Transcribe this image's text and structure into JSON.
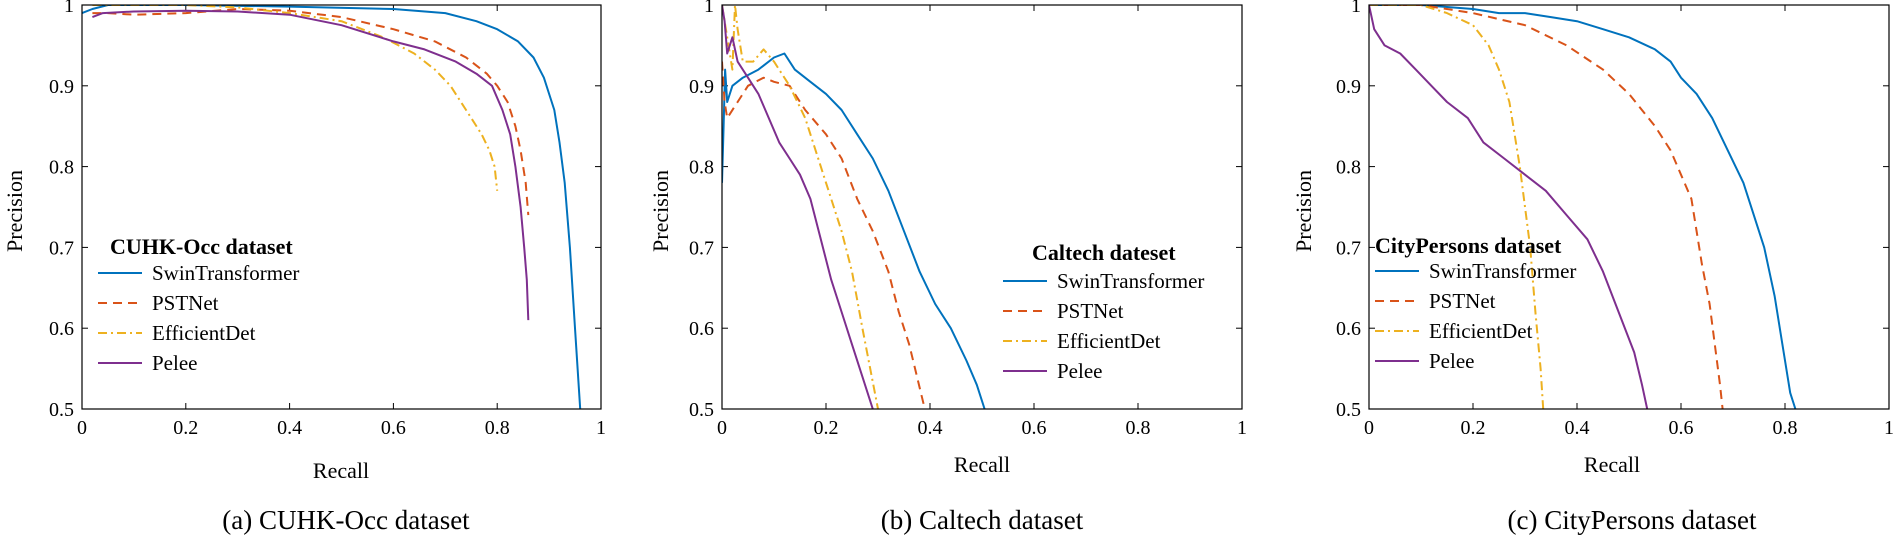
{
  "series_styles": {
    "SwinTransformer": {
      "color": "#0072BD",
      "dash": ""
    },
    "PSTNet": {
      "color": "#D95319",
      "dash": "9,6"
    },
    "EfficientDet": {
      "color": "#EDB120",
      "dash": "9,4,2,4"
    },
    "Pelee": {
      "color": "#7E2F8E",
      "dash": ""
    }
  },
  "chart_data": [
    {
      "type": "line",
      "caption": "(a) CUHK-Occ dataset",
      "legend_title": "CUHK-Occ dataset",
      "xlabel": "Recall",
      "ylabel": "Precision",
      "xlim": [
        0,
        1
      ],
      "ylim": [
        0.5,
        1
      ],
      "xticks": [
        0,
        0.2,
        0.4,
        0.6,
        0.8,
        1
      ],
      "xtick_labels": [
        "0",
        "0.2",
        "0.4",
        "0.6",
        "0.8",
        "1"
      ],
      "yticks": [
        0.5,
        0.6,
        0.7,
        0.8,
        0.9,
        1
      ],
      "ytick_labels": [
        "0.5",
        "0.6",
        "0.7",
        "0.8",
        "0.9",
        "1"
      ],
      "series": [
        {
          "name": "SwinTransformer",
          "points": [
            [
              0.0,
              0.99
            ],
            [
              0.02,
              0.995
            ],
            [
              0.05,
              1.0
            ],
            [
              0.2,
              1.0
            ],
            [
              0.4,
              0.998
            ],
            [
              0.6,
              0.995
            ],
            [
              0.7,
              0.99
            ],
            [
              0.76,
              0.98
            ],
            [
              0.8,
              0.97
            ],
            [
              0.84,
              0.955
            ],
            [
              0.87,
              0.935
            ],
            [
              0.89,
              0.91
            ],
            [
              0.91,
              0.87
            ],
            [
              0.92,
              0.83
            ],
            [
              0.93,
              0.78
            ],
            [
              0.94,
              0.7
            ],
            [
              0.95,
              0.6
            ],
            [
              0.955,
              0.55
            ],
            [
              0.96,
              0.5
            ]
          ]
        },
        {
          "name": "PSTNet",
          "points": [
            [
              0.02,
              0.99
            ],
            [
              0.05,
              0.99
            ],
            [
              0.1,
              0.988
            ],
            [
              0.2,
              0.99
            ],
            [
              0.3,
              0.995
            ],
            [
              0.4,
              0.993
            ],
            [
              0.5,
              0.985
            ],
            [
              0.6,
              0.97
            ],
            [
              0.68,
              0.955
            ],
            [
              0.74,
              0.935
            ],
            [
              0.78,
              0.915
            ],
            [
              0.8,
              0.9
            ],
            [
              0.82,
              0.88
            ],
            [
              0.835,
              0.85
            ],
            [
              0.845,
              0.82
            ],
            [
              0.855,
              0.78
            ],
            [
              0.86,
              0.74
            ]
          ]
        },
        {
          "name": "EfficientDet",
          "points": [
            [
              0.02,
              1.0
            ],
            [
              0.1,
              1.0
            ],
            [
              0.2,
              1.0
            ],
            [
              0.3,
              0.997
            ],
            [
              0.4,
              0.99
            ],
            [
              0.5,
              0.98
            ],
            [
              0.58,
              0.96
            ],
            [
              0.64,
              0.94
            ],
            [
              0.68,
              0.92
            ],
            [
              0.71,
              0.9
            ],
            [
              0.73,
              0.88
            ],
            [
              0.75,
              0.86
            ],
            [
              0.77,
              0.84
            ],
            [
              0.785,
              0.82
            ],
            [
              0.795,
              0.8
            ],
            [
              0.8,
              0.77
            ]
          ]
        },
        {
          "name": "Pelee",
          "points": [
            [
              0.02,
              0.985
            ],
            [
              0.04,
              0.99
            ],
            [
              0.1,
              0.992
            ],
            [
              0.2,
              0.993
            ],
            [
              0.3,
              0.992
            ],
            [
              0.4,
              0.988
            ],
            [
              0.5,
              0.975
            ],
            [
              0.6,
              0.955
            ],
            [
              0.66,
              0.945
            ],
            [
              0.72,
              0.93
            ],
            [
              0.76,
              0.915
            ],
            [
              0.79,
              0.9
            ],
            [
              0.81,
              0.87
            ],
            [
              0.825,
              0.84
            ],
            [
              0.835,
              0.8
            ],
            [
              0.845,
              0.75
            ],
            [
              0.852,
              0.7
            ],
            [
              0.857,
              0.66
            ],
            [
              0.86,
              0.61
            ]
          ]
        }
      ]
    },
    {
      "type": "line",
      "caption": "(b) Caltech dataset",
      "legend_title": "Caltech dateset",
      "xlabel": "Recall",
      "ylabel": "Precision",
      "xlim": [
        0,
        1
      ],
      "ylim": [
        0.5,
        1
      ],
      "xticks": [
        0,
        0.2,
        0.4,
        0.6,
        0.8,
        1
      ],
      "xtick_labels": [
        "0",
        "0.2",
        "0.4",
        "0.6",
        "0.8",
        "1"
      ],
      "yticks": [
        0.5,
        0.6,
        0.7,
        0.8,
        0.9,
        1
      ],
      "ytick_labels": [
        "0.5",
        "0.6",
        "0.7",
        "0.8",
        "0.9",
        "1"
      ],
      "series": [
        {
          "name": "SwinTransformer",
          "points": [
            [
              0.0,
              0.78
            ],
            [
              0.003,
              0.85
            ],
            [
              0.006,
              0.92
            ],
            [
              0.01,
              0.88
            ],
            [
              0.02,
              0.9
            ],
            [
              0.04,
              0.91
            ],
            [
              0.07,
              0.92
            ],
            [
              0.1,
              0.935
            ],
            [
              0.12,
              0.94
            ],
            [
              0.14,
              0.92
            ],
            [
              0.17,
              0.905
            ],
            [
              0.2,
              0.89
            ],
            [
              0.23,
              0.87
            ],
            [
              0.26,
              0.84
            ],
            [
              0.29,
              0.81
            ],
            [
              0.32,
              0.77
            ],
            [
              0.35,
              0.72
            ],
            [
              0.38,
              0.67
            ],
            [
              0.41,
              0.63
            ],
            [
              0.44,
              0.6
            ],
            [
              0.47,
              0.56
            ],
            [
              0.49,
              0.53
            ],
            [
              0.505,
              0.5
            ]
          ]
        },
        {
          "name": "PSTNet",
          "points": [
            [
              0.0,
              0.93
            ],
            [
              0.005,
              0.88
            ],
            [
              0.01,
              0.86
            ],
            [
              0.03,
              0.88
            ],
            [
              0.05,
              0.9
            ],
            [
              0.08,
              0.91
            ],
            [
              0.1,
              0.905
            ],
            [
              0.13,
              0.9
            ],
            [
              0.16,
              0.87
            ],
            [
              0.2,
              0.84
            ],
            [
              0.23,
              0.81
            ],
            [
              0.26,
              0.76
            ],
            [
              0.29,
              0.72
            ],
            [
              0.32,
              0.67
            ],
            [
              0.34,
              0.62
            ],
            [
              0.36,
              0.58
            ],
            [
              0.375,
              0.54
            ],
            [
              0.39,
              0.5
            ]
          ]
        },
        {
          "name": "EfficientDet",
          "points": [
            [
              0.0,
              1.0
            ],
            [
              0.01,
              0.96
            ],
            [
              0.02,
              0.92
            ],
            [
              0.025,
              1.0
            ],
            [
              0.03,
              0.97
            ],
            [
              0.04,
              0.93
            ],
            [
              0.06,
              0.93
            ],
            [
              0.08,
              0.945
            ],
            [
              0.1,
              0.93
            ],
            [
              0.13,
              0.9
            ],
            [
              0.16,
              0.86
            ],
            [
              0.19,
              0.8
            ],
            [
              0.21,
              0.76
            ],
            [
              0.23,
              0.72
            ],
            [
              0.25,
              0.67
            ],
            [
              0.27,
              0.6
            ],
            [
              0.285,
              0.55
            ],
            [
              0.3,
              0.5
            ]
          ]
        },
        {
          "name": "Pelee",
          "points": [
            [
              0.0,
              1.0
            ],
            [
              0.005,
              0.98
            ],
            [
              0.01,
              0.94
            ],
            [
              0.02,
              0.96
            ],
            [
              0.03,
              0.93
            ],
            [
              0.05,
              0.91
            ],
            [
              0.07,
              0.89
            ],
            [
              0.09,
              0.86
            ],
            [
              0.11,
              0.83
            ],
            [
              0.13,
              0.81
            ],
            [
              0.15,
              0.79
            ],
            [
              0.17,
              0.76
            ],
            [
              0.19,
              0.71
            ],
            [
              0.21,
              0.66
            ],
            [
              0.23,
              0.62
            ],
            [
              0.25,
              0.58
            ],
            [
              0.27,
              0.54
            ],
            [
              0.29,
              0.5
            ]
          ]
        }
      ]
    },
    {
      "type": "line",
      "caption": "(c) CityPersons dataset",
      "legend_title": "CityPersons dataset",
      "xlabel": "Recall",
      "ylabel": "Precision",
      "xlim": [
        0,
        1
      ],
      "ylim": [
        0.5,
        1
      ],
      "xticks": [
        0,
        0.2,
        0.4,
        0.6,
        0.8,
        1
      ],
      "xtick_labels": [
        "0",
        "0.2",
        "0.4",
        "0.6",
        "0.8",
        "1"
      ],
      "yticks": [
        0.5,
        0.6,
        0.7,
        0.8,
        0.9,
        1
      ],
      "ytick_labels": [
        "0.5",
        "0.6",
        "0.7",
        "0.8",
        "0.9",
        "1"
      ],
      "series": [
        {
          "name": "SwinTransformer",
          "points": [
            [
              0.0,
              1.0
            ],
            [
              0.1,
              1.0
            ],
            [
              0.2,
              0.995
            ],
            [
              0.25,
              0.99
            ],
            [
              0.3,
              0.99
            ],
            [
              0.35,
              0.985
            ],
            [
              0.4,
              0.98
            ],
            [
              0.45,
              0.97
            ],
            [
              0.5,
              0.96
            ],
            [
              0.55,
              0.945
            ],
            [
              0.58,
              0.93
            ],
            [
              0.6,
              0.91
            ],
            [
              0.63,
              0.89
            ],
            [
              0.66,
              0.86
            ],
            [
              0.69,
              0.82
            ],
            [
              0.72,
              0.78
            ],
            [
              0.74,
              0.74
            ],
            [
              0.76,
              0.7
            ],
            [
              0.78,
              0.64
            ],
            [
              0.795,
              0.58
            ],
            [
              0.81,
              0.52
            ],
            [
              0.82,
              0.5
            ]
          ]
        },
        {
          "name": "PSTNet",
          "points": [
            [
              0.0,
              1.0
            ],
            [
              0.1,
              1.0
            ],
            [
              0.2,
              0.99
            ],
            [
              0.3,
              0.975
            ],
            [
              0.38,
              0.95
            ],
            [
              0.45,
              0.92
            ],
            [
              0.5,
              0.89
            ],
            [
              0.55,
              0.85
            ],
            [
              0.58,
              0.82
            ],
            [
              0.6,
              0.79
            ],
            [
              0.62,
              0.76
            ],
            [
              0.63,
              0.72
            ],
            [
              0.64,
              0.68
            ],
            [
              0.655,
              0.63
            ],
            [
              0.665,
              0.58
            ],
            [
              0.675,
              0.53
            ],
            [
              0.68,
              0.5
            ]
          ]
        },
        {
          "name": "EfficientDet",
          "points": [
            [
              0.0,
              1.0
            ],
            [
              0.1,
              1.0
            ],
            [
              0.15,
              0.99
            ],
            [
              0.2,
              0.975
            ],
            [
              0.23,
              0.95
            ],
            [
              0.25,
              0.92
            ],
            [
              0.27,
              0.88
            ],
            [
              0.28,
              0.84
            ],
            [
              0.29,
              0.8
            ],
            [
              0.3,
              0.75
            ],
            [
              0.31,
              0.7
            ],
            [
              0.32,
              0.62
            ],
            [
              0.33,
              0.55
            ],
            [
              0.335,
              0.5
            ]
          ]
        },
        {
          "name": "Pelee",
          "points": [
            [
              0.0,
              1.0
            ],
            [
              0.01,
              0.97
            ],
            [
              0.03,
              0.95
            ],
            [
              0.06,
              0.94
            ],
            [
              0.09,
              0.92
            ],
            [
              0.12,
              0.9
            ],
            [
              0.15,
              0.88
            ],
            [
              0.19,
              0.86
            ],
            [
              0.22,
              0.83
            ],
            [
              0.26,
              0.81
            ],
            [
              0.3,
              0.79
            ],
            [
              0.34,
              0.77
            ],
            [
              0.38,
              0.74
            ],
            [
              0.42,
              0.71
            ],
            [
              0.45,
              0.67
            ],
            [
              0.48,
              0.62
            ],
            [
              0.51,
              0.57
            ],
            [
              0.525,
              0.53
            ],
            [
              0.535,
              0.5
            ]
          ]
        }
      ]
    }
  ]
}
